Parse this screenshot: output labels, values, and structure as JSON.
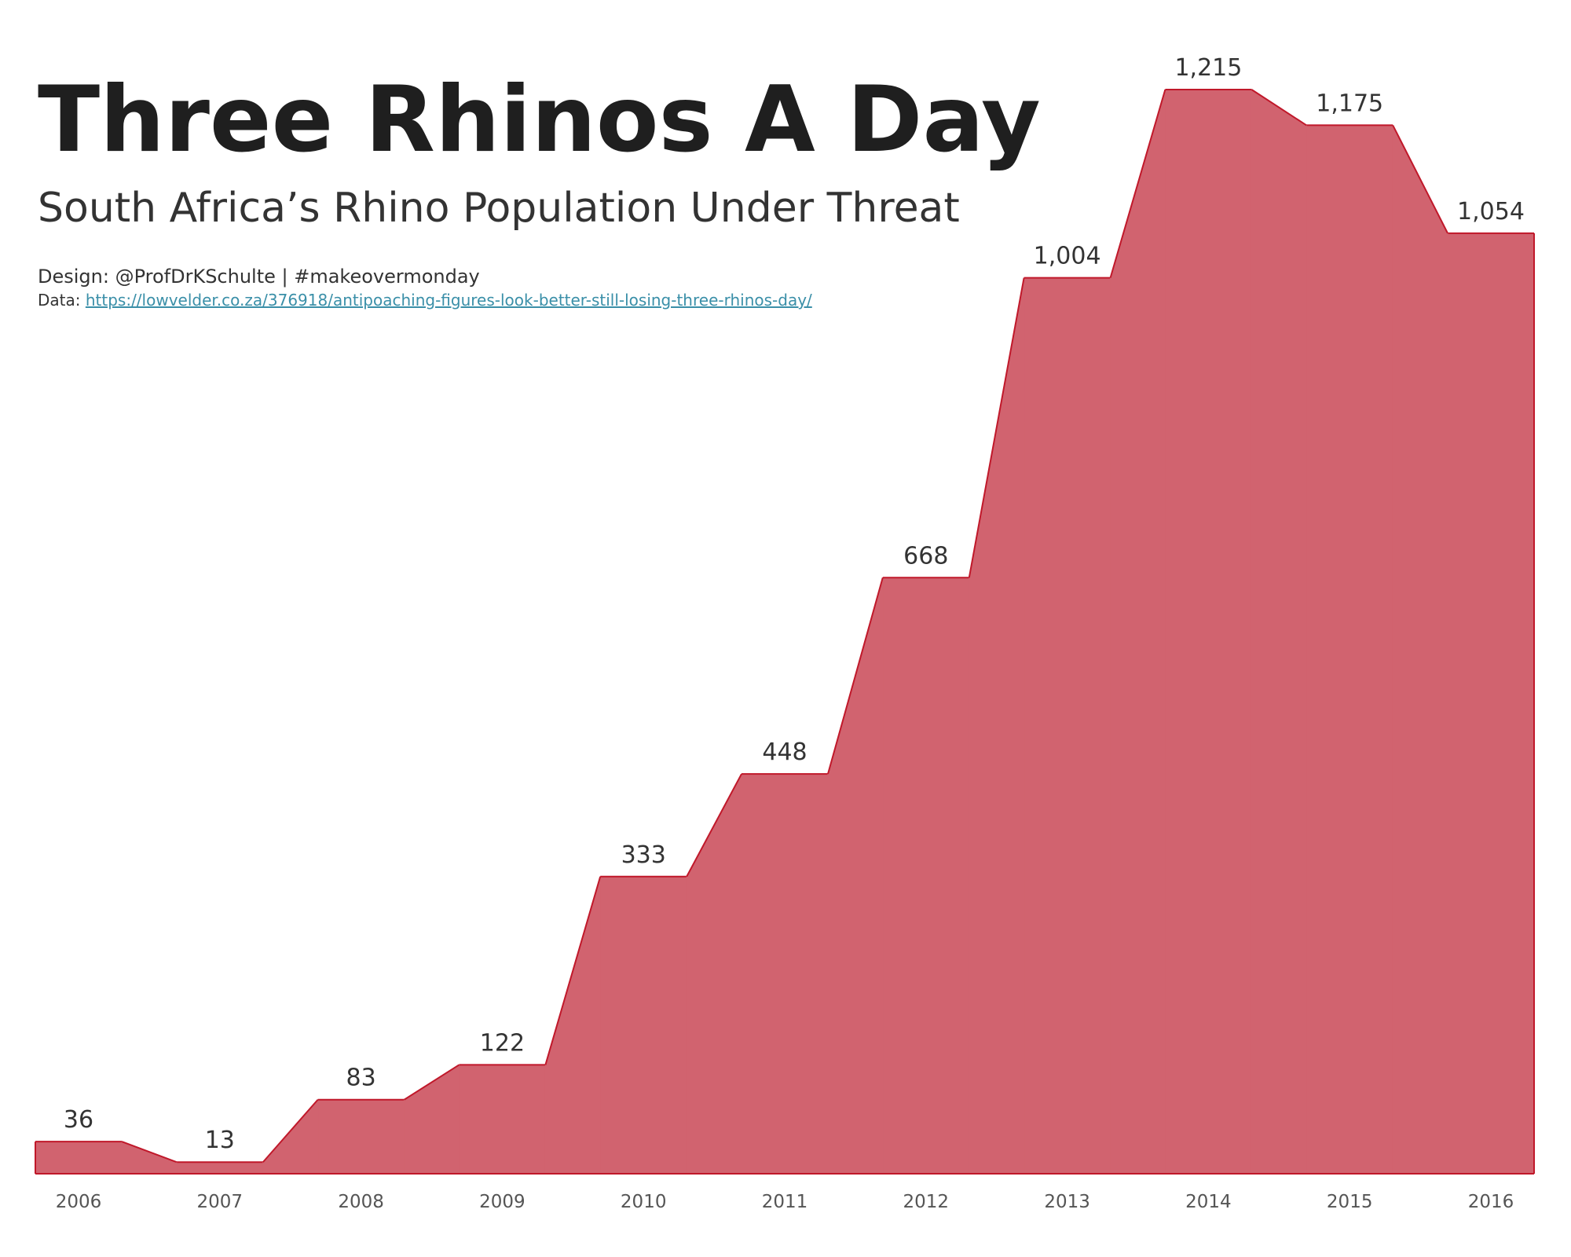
{
  "chart_data": {
    "type": "area",
    "title": "Three Rhinos A Day",
    "subtitle": "South Africa’s Rhino Population Under Threat",
    "design": "Design: @ProfDrKSchulte | #makeovermonday",
    "data_label": "Data:",
    "data_url": "https://lowvelder.co.za/376918/antipoaching-figures-look-better-still-losing-three-rhinos-day/",
    "categories": [
      "2006",
      "2007",
      "2008",
      "2009",
      "2010",
      "2011",
      "2012",
      "2013",
      "2014",
      "2015",
      "2016"
    ],
    "values": [
      36,
      13,
      83,
      122,
      333,
      448,
      668,
      1004,
      1215,
      1175,
      1054
    ],
    "value_labels": [
      "36",
      "13",
      "83",
      "122",
      "333",
      "448",
      "668",
      "1,004",
      "1,215",
      "1,175",
      "1,054"
    ],
    "color": "#d1636f",
    "line_color": "#c0182a"
  }
}
